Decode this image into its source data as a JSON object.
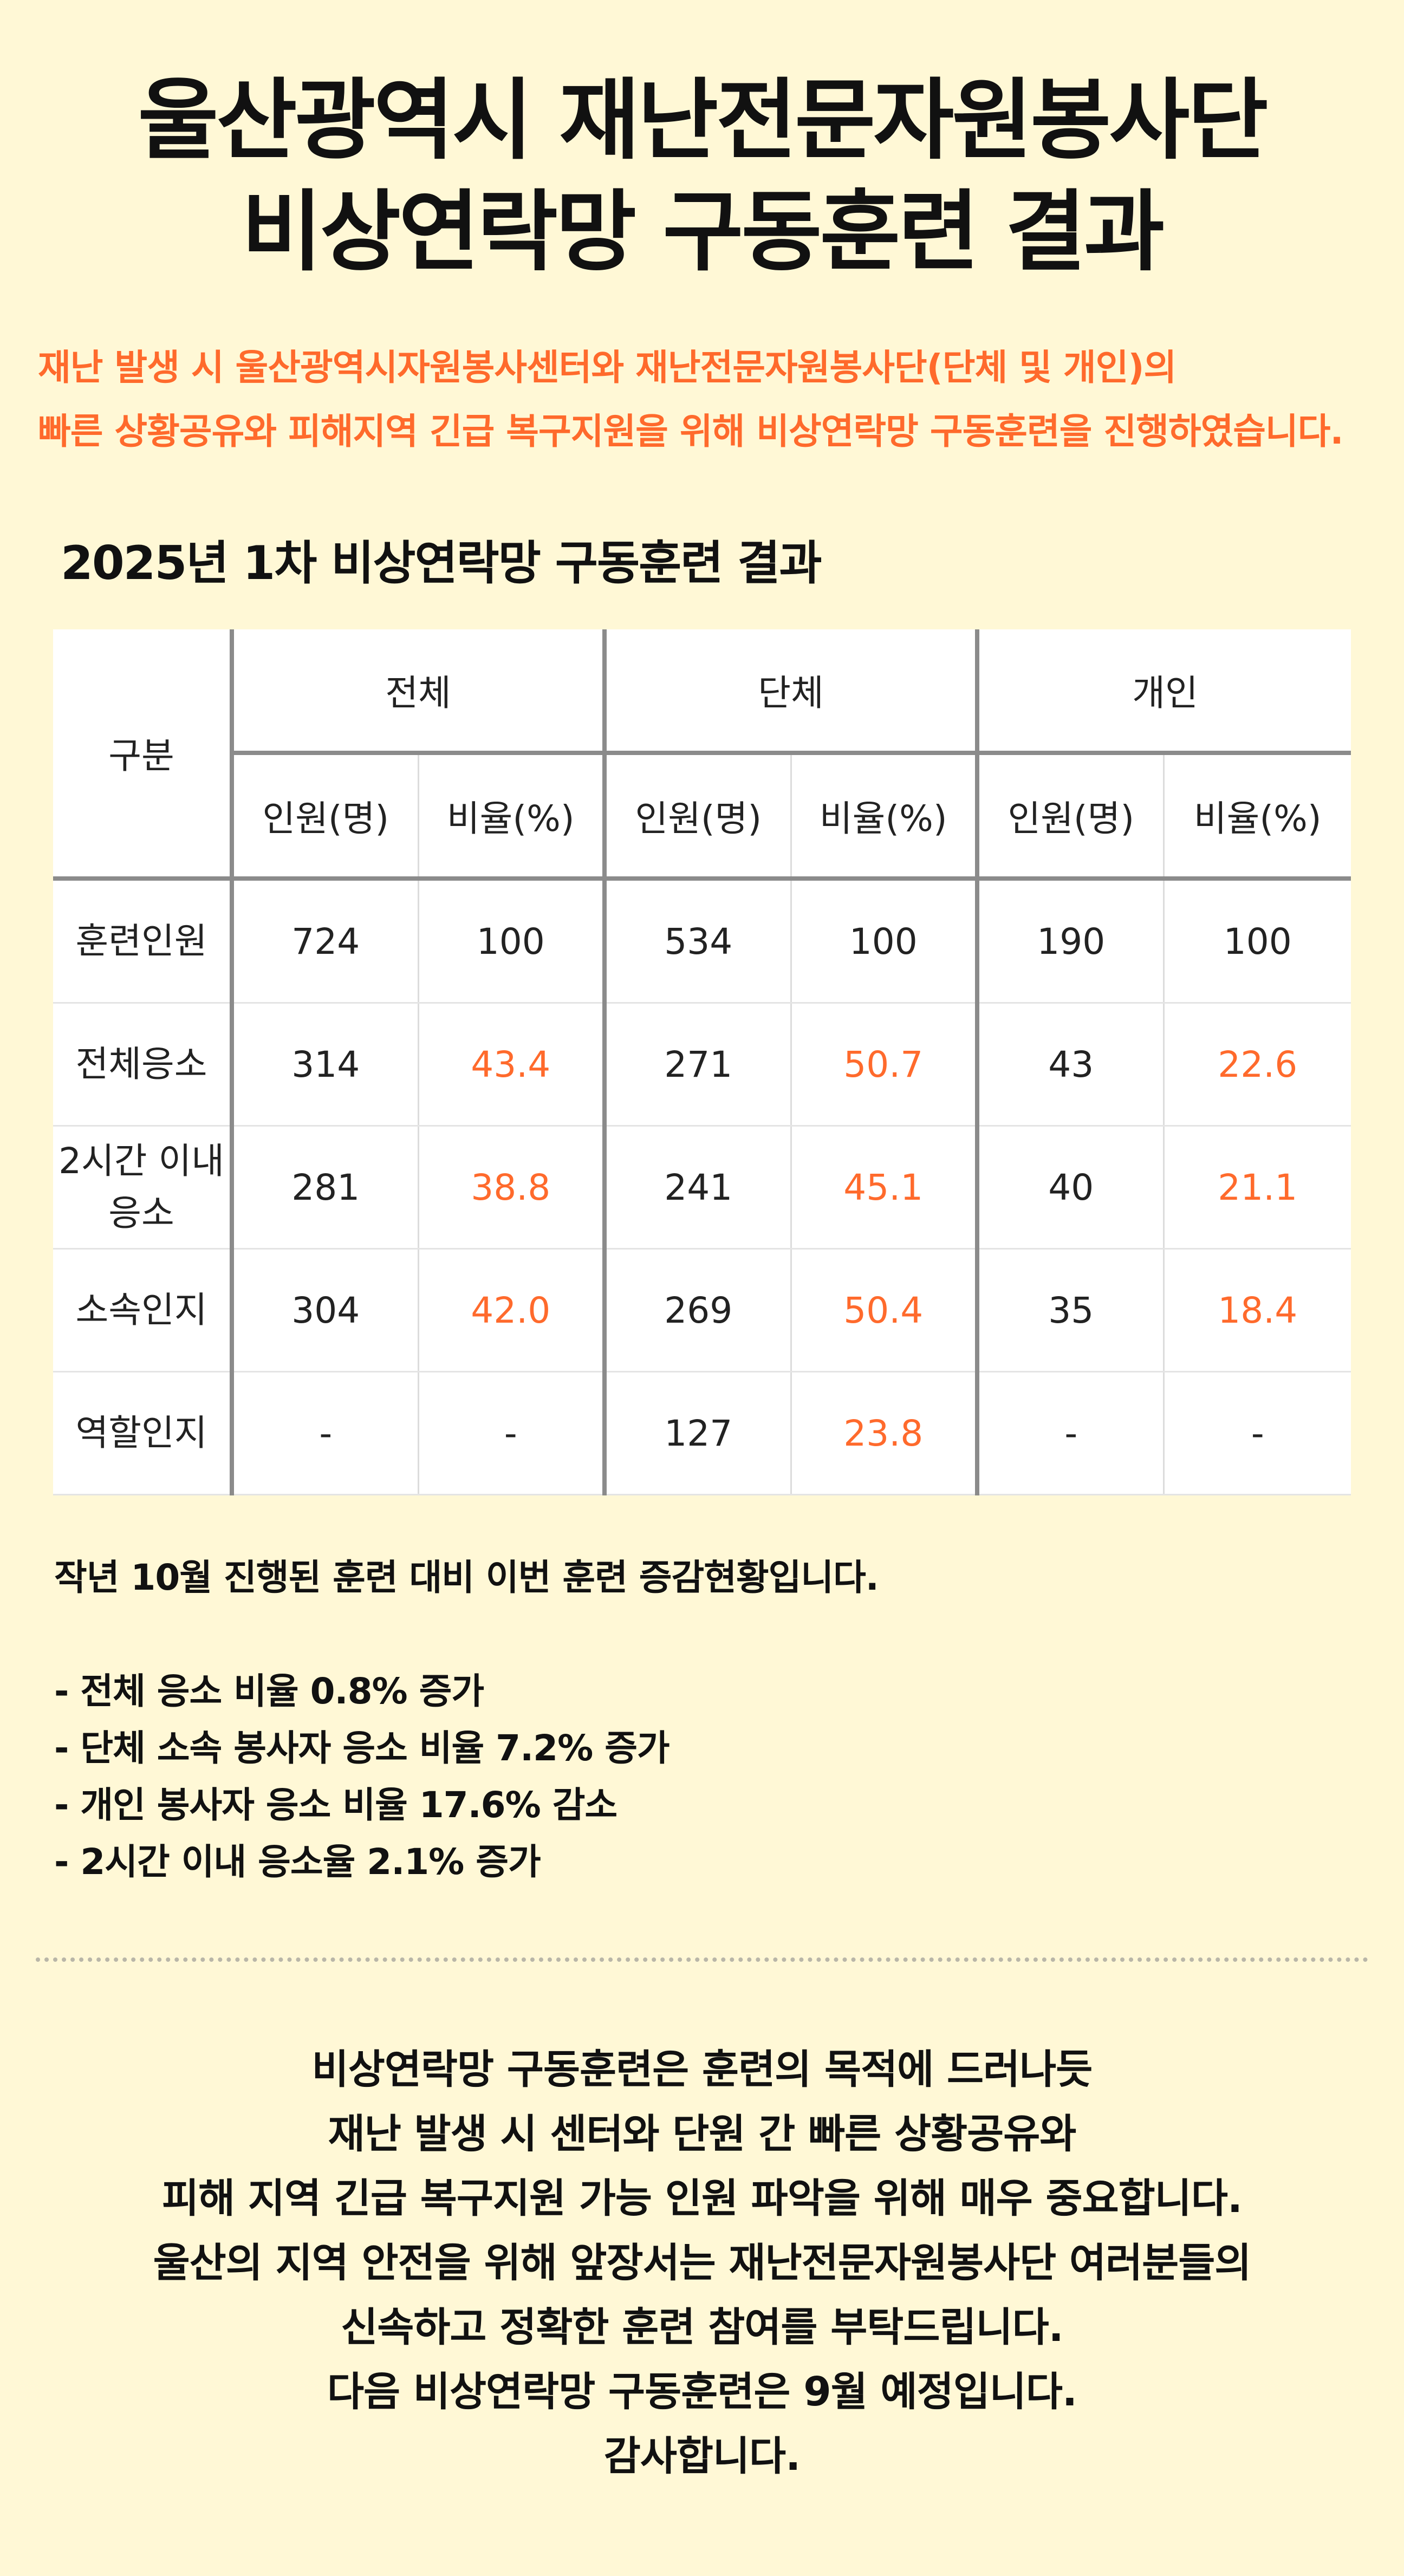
{
  "title": {
    "line1": "울산광역시 재난전문자원봉사단",
    "line2": "비상연락망 구동훈련 결과"
  },
  "intro": {
    "line1": "재난 발생 시 울산광역시자원봉사센터와 재난전문자원봉사단(단체 및 개인)의",
    "line2": "빠른 상황공유와 피해지역 긴급 복구지원을 위해 비상연락망 구동훈련을 진행하였습니다."
  },
  "table": {
    "title": "2025년 1차 비상연락망 구동훈련 결과",
    "corner": "구분",
    "groups": [
      "전체",
      "단체",
      "개인"
    ],
    "subheaders": [
      "인원(명)",
      "비율(%)"
    ],
    "rows": [
      {
        "label": "훈련인원",
        "values": [
          "724",
          "100",
          "534",
          "100",
          "190",
          "100"
        ]
      },
      {
        "label": "전체응소",
        "values": [
          "314",
          "43.4",
          "271",
          "50.7",
          "43",
          "22.6"
        ]
      },
      {
        "label": "2시간 이내 응소",
        "values": [
          "281",
          "38.8",
          "241",
          "45.1",
          "40",
          "21.1"
        ]
      },
      {
        "label": "소속인지",
        "values": [
          "304",
          "42.0",
          "269",
          "50.4",
          "35",
          "18.4"
        ]
      },
      {
        "label": "역할인지",
        "values": [
          "-",
          "-",
          "127",
          "23.8",
          "-",
          "-"
        ]
      }
    ],
    "highlight_color": "#ff6a2c"
  },
  "notes": {
    "intro": "작년 10월 진행된 훈련 대비 이번 훈련 증감현황입니다.",
    "items": [
      "- 전체 응소 비율 0.8% 증가",
      "- 단체 소속 봉사자 응소 비율 7.2% 증가",
      "- 개인 봉사자 응소 비율 17.6% 감소",
      "- 2시간 이내 응소율 2.1% 증가"
    ]
  },
  "closing": [
    "비상연락망 구동훈련은 훈련의 목적에 드러나듯",
    "재난 발생 시 센터와 단원 간 빠른 상황공유와",
    "피해 지역 긴급 복구지원 가능 인원 파악을 위해 매우 중요합니다.",
    "울산의 지역 안전을 위해 앞장서는 재난전문자원봉사단 여러분들의",
    "신속하고 정확한 훈련 참여를 부탁드립니다.",
    "다음 비상연락망 구동훈련은 9월 예정입니다.",
    "감사합니다."
  ],
  "colors": {
    "background": "#fff8d6",
    "accent": "#ff6a2c",
    "text": "#111111"
  }
}
